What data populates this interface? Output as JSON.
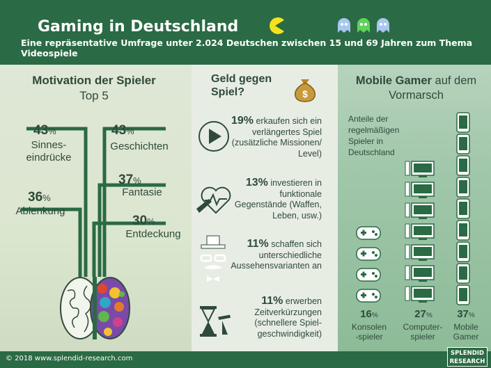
{
  "header": {
    "title": "Gaming in Deutschland",
    "subtitle": "Eine repräsentative Umfrage unter 2.024 Deutschen zwischen 15 und 69 Jahren zum Thema Videospiele"
  },
  "motivation": {
    "title": "Motivation der Spieler",
    "subtitle": "Top 5",
    "items": [
      {
        "value": "43",
        "unit": "%",
        "label_line1": "Sinnes-",
        "label_line2": "eindrücke"
      },
      {
        "value": "43",
        "unit": "%",
        "label_line1": "Geschichten",
        "label_line2": ""
      },
      {
        "value": "37",
        "unit": "%",
        "label_line1": "Fantasie",
        "label_line2": ""
      },
      {
        "value": "36",
        "unit": "%",
        "label_line1": "Ablenkung",
        "label_line2": ""
      },
      {
        "value": "30",
        "unit": "%",
        "label_line1": "Entdeckung",
        "label_line2": ""
      }
    ]
  },
  "geld": {
    "title_line1": "Geld gegen",
    "title_line2": "Spiel?",
    "items": [
      {
        "value": "19%",
        "text": "erkaufen sich ein verlängertes Spiel (zusätzliche Missionen/ Level)",
        "icon": "play-icon"
      },
      {
        "value": "13%",
        "text": "investieren in funktionale Gegenstände (Waffen, Leben, usw.)",
        "icon": "heart-weapon-icon"
      },
      {
        "value": "11%",
        "text": "schaffen sich unterschiedliche Aussehensvarianten an",
        "icon": "hipster-face-icon"
      },
      {
        "value": "11%",
        "text": "erwerben Zeitverkürzungen (schnellere Spiel-geschwindigkeit)",
        "icon": "hourglass-icon"
      }
    ]
  },
  "mobile": {
    "title_bold": "Mobile Gamer",
    "title_rest1": " auf dem",
    "title_rest2": "Vormarsch",
    "share_text": "Anteile der regelmäßigen Spieler in Deutschland",
    "groups": [
      {
        "value": "16",
        "unit": "%",
        "label_line1": "Konsolen",
        "label_line2": "-spieler",
        "icon": "gamepad-icon",
        "count": 4
      },
      {
        "value": "27",
        "unit": "%",
        "label_line1": "Computer-",
        "label_line2": "spieler",
        "icon": "monitor-icon",
        "count": 7
      },
      {
        "value": "37",
        "unit": "%",
        "label_line1": "Mobile",
        "label_line2": "Gamer",
        "icon": "smartphone-icon",
        "count": 9
      }
    ]
  },
  "footer": {
    "copyright": "© 2018 www.splendid-research.com",
    "logo_line1": "SPLENDID",
    "logo_line2": "RESEARCH"
  },
  "colors": {
    "header": "#2a6a44",
    "text": "#2f4a3a",
    "wire": "#2a6a44"
  }
}
